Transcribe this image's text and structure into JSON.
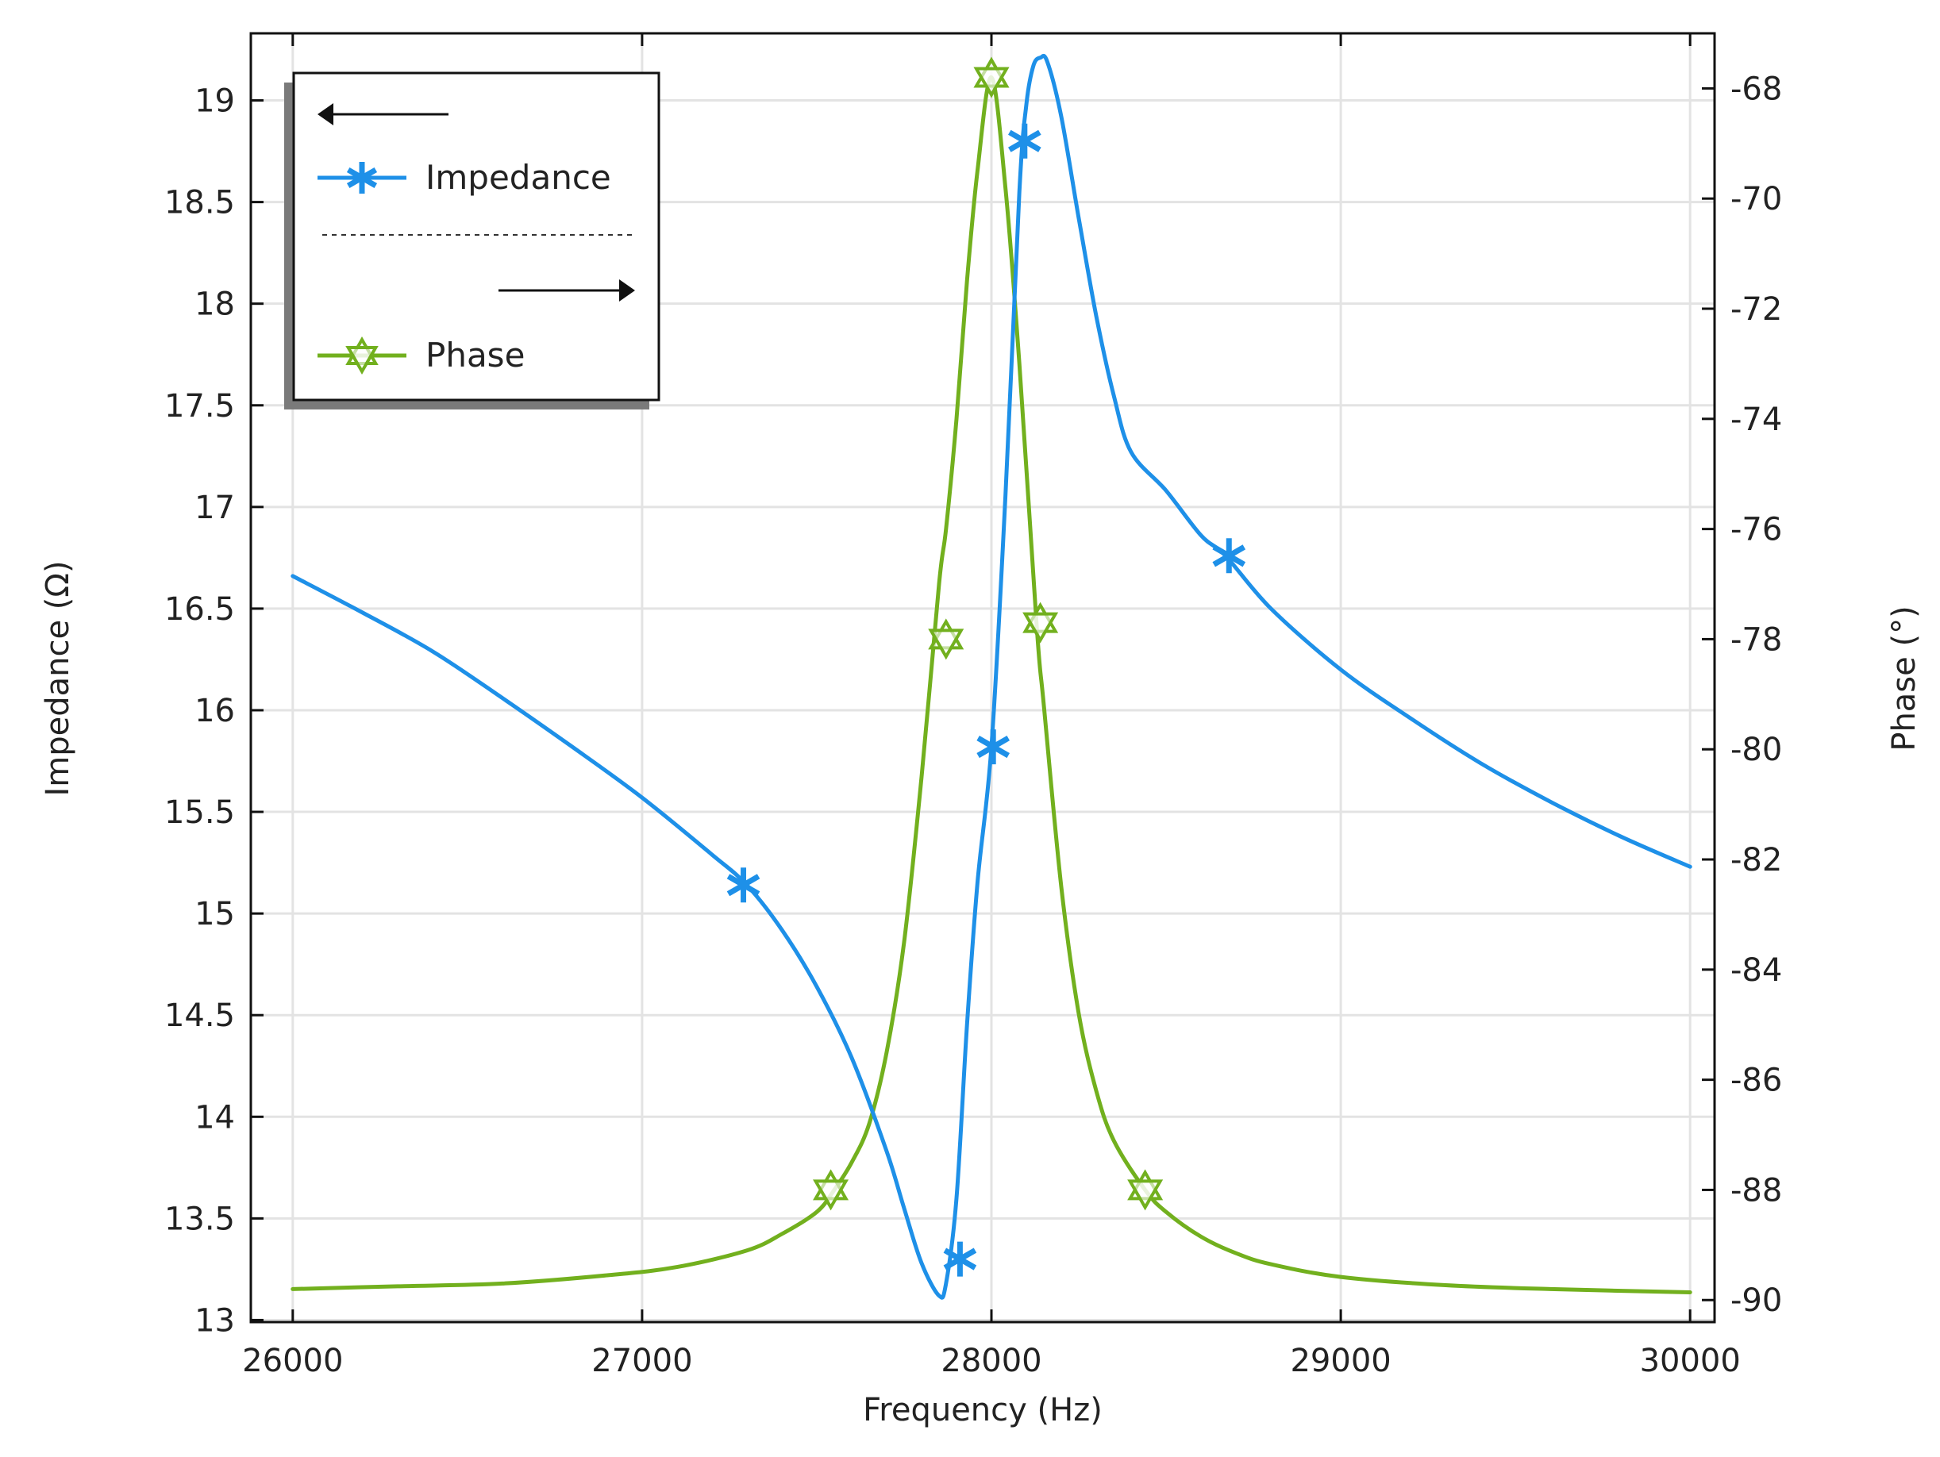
{
  "chart_data": {
    "type": "line",
    "title": "",
    "xlabel": "Frequency (Hz)",
    "ylabel": "Impedance (Ω)",
    "y2label": "Phase (°)",
    "xlim": [
      25880,
      30070
    ],
    "ylim": [
      12.99,
      19.33
    ],
    "y2lim": [
      -90.4,
      -67.0
    ],
    "x_ticks": [
      26000,
      27000,
      28000,
      29000,
      30000
    ],
    "y_ticks": [
      13,
      13.5,
      14,
      14.5,
      15,
      15.5,
      16,
      16.5,
      17,
      17.5,
      18,
      18.5,
      19
    ],
    "y2_ticks": [
      -90,
      -88,
      -86,
      -84,
      -82,
      -80,
      -78,
      -76,
      -74,
      -72,
      -70,
      -68
    ],
    "grid": true,
    "legend": {
      "placement": "top-left",
      "entries": [
        {
          "kind": "arrow-left",
          "text": ""
        },
        {
          "kind": "series",
          "series": 0
        },
        {
          "kind": "separator",
          "text": ""
        },
        {
          "kind": "arrow-right",
          "text": ""
        },
        {
          "kind": "series",
          "series": 1
        }
      ]
    },
    "series": [
      {
        "name": "Impedance",
        "axis": "left",
        "color": "#1e90e8",
        "marker": "asterisk",
        "x": [
          26000,
          26200,
          26400,
          26600,
          26800,
          27000,
          27200,
          27300,
          27400,
          27500,
          27600,
          27700,
          27750,
          27800,
          27850,
          27870,
          27900,
          27930,
          27960,
          28000,
          28040,
          28080,
          28100,
          28120,
          28140,
          28160,
          28200,
          28250,
          28300,
          28350,
          28400,
          28500,
          28600,
          28670,
          28800,
          29000,
          29200,
          29400,
          29600,
          29800,
          30000
        ],
        "values": [
          16.66,
          16.48,
          16.29,
          16.06,
          15.82,
          15.57,
          15.29,
          15.14,
          14.92,
          14.64,
          14.29,
          13.83,
          13.55,
          13.28,
          13.12,
          13.18,
          13.6,
          14.45,
          15.15,
          15.82,
          17.05,
          18.55,
          18.98,
          19.17,
          19.21,
          19.19,
          18.92,
          18.42,
          17.94,
          17.55,
          17.27,
          17.08,
          16.86,
          16.76,
          16.5,
          16.2,
          15.96,
          15.74,
          15.55,
          15.38,
          15.23
        ]
      },
      {
        "name": "Phase",
        "axis": "right",
        "color": "#72b01e",
        "marker": "hexagram",
        "x": [
          26000,
          26300,
          26600,
          26900,
          27100,
          27300,
          27400,
          27500,
          27550,
          27600,
          27650,
          27700,
          27750,
          27800,
          27850,
          27870,
          27900,
          27930,
          27960,
          28000,
          28040,
          28080,
          28130,
          28150,
          28200,
          28250,
          28300,
          28350,
          28440,
          28500,
          28600,
          28700,
          28800,
          29000,
          29300,
          29600,
          30000
        ],
        "values": [
          -89.8,
          -89.75,
          -89.7,
          -89.55,
          -89.4,
          -89.1,
          -88.8,
          -88.4,
          -88.0,
          -87.5,
          -86.8,
          -85.5,
          -83.5,
          -80.5,
          -77.0,
          -76.0,
          -74.0,
          -71.5,
          -69.5,
          -67.8,
          -69.8,
          -73.0,
          -77.8,
          -79.2,
          -82.5,
          -84.8,
          -86.2,
          -87.1,
          -88.0,
          -88.4,
          -88.85,
          -89.15,
          -89.35,
          -89.58,
          -89.73,
          -89.8,
          -89.86
        ]
      }
    ],
    "markers": [
      {
        "series": 0,
        "points": [
          [
            27290,
            15.14
          ],
          [
            27910,
            13.3
          ],
          [
            28005,
            15.82
          ],
          [
            28095,
            18.8
          ],
          [
            28680,
            16.76
          ]
        ]
      },
      {
        "series": 1,
        "points": [
          [
            27540,
            -88.0
          ],
          [
            27870,
            -78.0
          ],
          [
            28000,
            -67.8
          ],
          [
            28140,
            -77.7
          ],
          [
            28440,
            -88.0
          ]
        ]
      }
    ]
  }
}
